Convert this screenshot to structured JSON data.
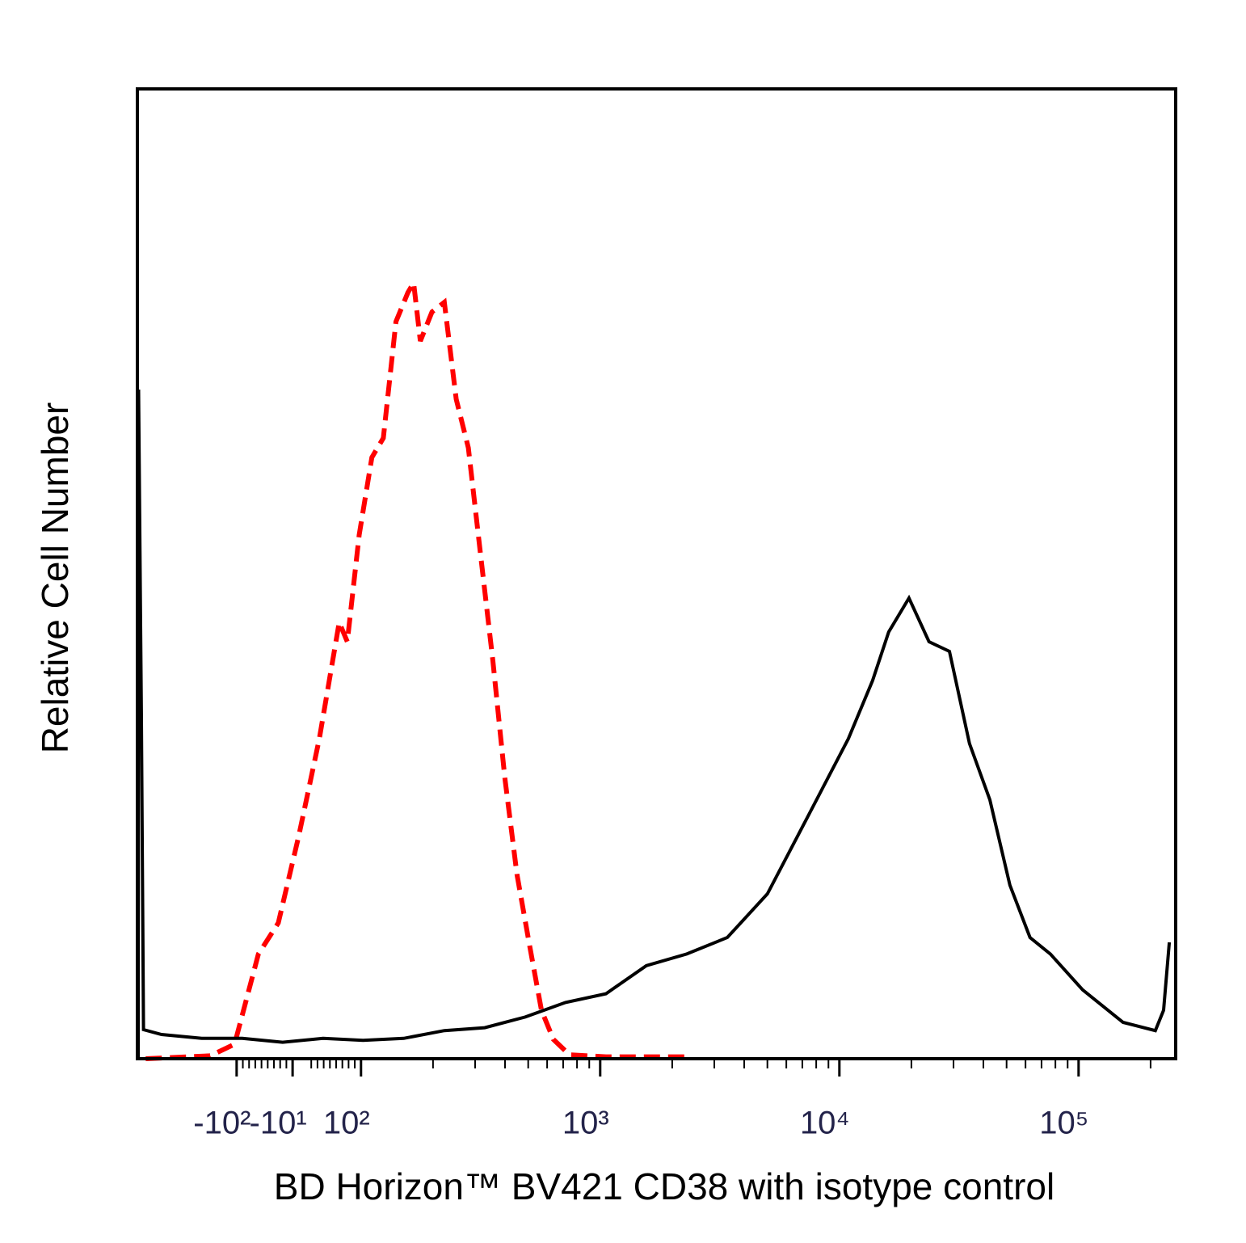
{
  "chart_data": {
    "type": "line",
    "x_label": "BD Horizon™ BV421 CD38 with isotype control",
    "y_label": "Relative Cell Number",
    "xscale": "symlog",
    "linthresh": 100,
    "linscale": 0.26,
    "xlim": [
      -260,
      254700
    ],
    "ylim": [
      0,
      100
    ],
    "xticks": [
      {
        "value": -100,
        "label": "-10²"
      },
      {
        "value": -10,
        "label": "-10¹"
      },
      {
        "value": 100,
        "label": "10²"
      },
      {
        "value": 1000,
        "label": "10³"
      },
      {
        "value": 10000,
        "label": "10⁴"
      },
      {
        "value": 100000,
        "label": "10⁵"
      }
    ],
    "xminorticks": [
      -90,
      -80,
      -70,
      -60,
      -50,
      -40,
      -30,
      -20,
      20,
      30,
      40,
      50,
      60,
      70,
      80,
      90,
      200,
      300,
      400,
      500,
      600,
      700,
      800,
      900,
      2000,
      3000,
      4000,
      5000,
      6000,
      7000,
      8000,
      9000,
      20000,
      30000,
      40000,
      50000,
      60000,
      70000,
      80000,
      90000,
      200000
    ],
    "series": [
      {
        "color": "#ff0000",
        "dash": true,
        "x": [
          -240,
          -129,
          -102,
          -65,
          -33,
          0,
          33,
          65,
          78,
          97,
          111,
          124,
          140,
          157,
          166,
          177,
          198,
          223,
          250,
          281,
          316,
          356,
          399,
          449,
          504,
          568,
          637,
          745,
          1057,
          2290
        ],
        "values": [
          0,
          0.3,
          1.5,
          10.8,
          14,
          23,
          33,
          45,
          43,
          54,
          62,
          64,
          76,
          79,
          80,
          74,
          77,
          78,
          68,
          63,
          52,
          41,
          29,
          19,
          12,
          5,
          2,
          0.4,
          0.2,
          0.2
        ]
      },
      {
        "color": "#000000",
        "dash": false,
        "x": [
          -258,
          -257,
          -250,
          -245,
          -206,
          -140,
          -91,
          -26,
          39,
          102,
          151,
          223,
          329,
          486,
          716,
          1057,
          1560,
          2300,
          3400,
          5000,
          7390,
          10900,
          13770,
          16070,
          19540,
          23700,
          28840,
          34990,
          42560,
          51640,
          62660,
          76210,
          104000,
          153500,
          209400,
          226600,
          239600
        ],
        "values": [
          0,
          69,
          35,
          3,
          2.5,
          2.1,
          2.1,
          1.7,
          2.1,
          1.9,
          2.1,
          2.9,
          3.2,
          4.3,
          5.8,
          6.7,
          9.6,
          10.8,
          12.5,
          17,
          25,
          33,
          39,
          44,
          47.5,
          43,
          42,
          32.5,
          26.7,
          17.9,
          12.5,
          10.8,
          7.1,
          3.75,
          2.9,
          5,
          12
        ]
      }
    ]
  }
}
